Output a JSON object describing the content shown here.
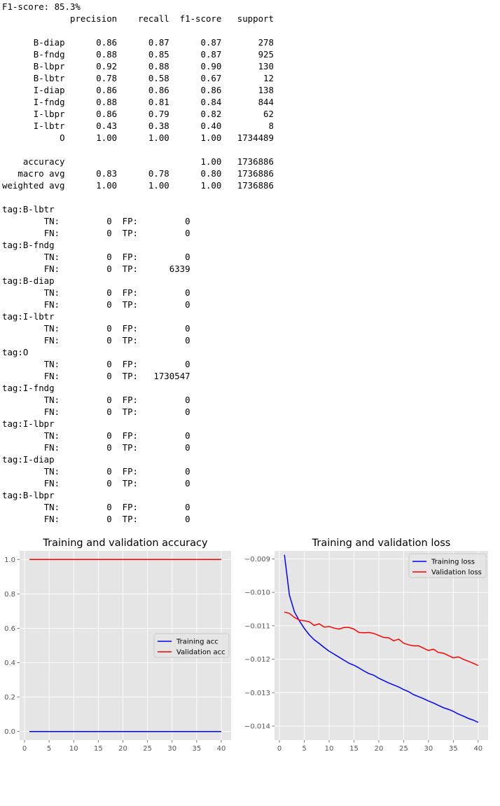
{
  "report": {
    "f1_line": "F1-score: 85.3%",
    "header": [
      "precision",
      "recall",
      "f1-score",
      "support"
    ],
    "rows": [
      {
        "label": "B-diap",
        "precision": "0.86",
        "recall": "0.87",
        "f1": "0.87",
        "support": "278"
      },
      {
        "label": "B-fndg",
        "precision": "0.88",
        "recall": "0.85",
        "f1": "0.87",
        "support": "925"
      },
      {
        "label": "B-lbpr",
        "precision": "0.92",
        "recall": "0.88",
        "f1": "0.90",
        "support": "130"
      },
      {
        "label": "B-lbtr",
        "precision": "0.78",
        "recall": "0.58",
        "f1": "0.67",
        "support": "12"
      },
      {
        "label": "I-diap",
        "precision": "0.86",
        "recall": "0.86",
        "f1": "0.86",
        "support": "138"
      },
      {
        "label": "I-fndg",
        "precision": "0.88",
        "recall": "0.81",
        "f1": "0.84",
        "support": "844"
      },
      {
        "label": "I-lbpr",
        "precision": "0.86",
        "recall": "0.79",
        "f1": "0.82",
        "support": "62"
      },
      {
        "label": "I-lbtr",
        "precision": "0.43",
        "recall": "0.38",
        "f1": "0.40",
        "support": "8"
      },
      {
        "label": "O",
        "precision": "1.00",
        "recall": "1.00",
        "f1": "1.00",
        "support": "1734489"
      }
    ],
    "summary": [
      {
        "label": "accuracy",
        "precision": "",
        "recall": "",
        "f1": "1.00",
        "support": "1736886"
      },
      {
        "label": "macro avg",
        "precision": "0.83",
        "recall": "0.78",
        "f1": "0.80",
        "support": "1736886"
      },
      {
        "label": "weighted avg",
        "precision": "1.00",
        "recall": "1.00",
        "f1": "1.00",
        "support": "1736886"
      }
    ]
  },
  "confusion": {
    "labels": {
      "tn": "TN:",
      "fp": "FP:",
      "fn": "FN:",
      "tp": "TP:"
    },
    "tags": [
      {
        "tag": "tag:B-lbtr",
        "tn": "0",
        "fp": "0",
        "fn": "0",
        "tp": "0"
      },
      {
        "tag": "tag:B-fndg",
        "tn": "0",
        "fp": "0",
        "fn": "0",
        "tp": "6339"
      },
      {
        "tag": "tag:B-diap",
        "tn": "0",
        "fp": "0",
        "fn": "0",
        "tp": "0"
      },
      {
        "tag": "tag:I-lbtr",
        "tn": "0",
        "fp": "0",
        "fn": "0",
        "tp": "0"
      },
      {
        "tag": "tag:O",
        "tn": "0",
        "fp": "0",
        "fn": "0",
        "tp": "1730547"
      },
      {
        "tag": "tag:I-fndg",
        "tn": "0",
        "fp": "0",
        "fn": "0",
        "tp": "0"
      },
      {
        "tag": "tag:I-lbpr",
        "tn": "0",
        "fp": "0",
        "fn": "0",
        "tp": "0"
      },
      {
        "tag": "tag:I-diap",
        "tn": "0",
        "fp": "0",
        "fn": "0",
        "tp": "0"
      },
      {
        "tag": "tag:B-lbpr",
        "tn": "0",
        "fp": "0",
        "fn": "0",
        "tp": "0"
      }
    ]
  },
  "chart_data": [
    {
      "type": "line",
      "title": "Training and validation accuracy",
      "xlabel": "",
      "ylabel": "",
      "xlim": [
        -1,
        42
      ],
      "ylim": [
        -0.05,
        1.05
      ],
      "xticks": [
        0,
        5,
        10,
        15,
        20,
        25,
        30,
        35,
        40
      ],
      "yticks": [
        0.0,
        0.2,
        0.4,
        0.6,
        0.8,
        1.0
      ],
      "ytick_labels": [
        "0.0",
        "0.2",
        "0.4",
        "0.6",
        "0.8",
        "1.0"
      ],
      "grid": true,
      "legend_position": "center-right",
      "x": [
        1,
        40
      ],
      "series": [
        {
          "name": "Training acc",
          "color": "#0000ff",
          "x": [
            1,
            40
          ],
          "values": [
            0.0,
            0.0
          ]
        },
        {
          "name": "Validation acc",
          "color": "#ff0000",
          "x": [
            1,
            40
          ],
          "values": [
            1.0,
            1.0
          ]
        }
      ]
    },
    {
      "type": "line",
      "title": "Training and validation loss",
      "xlabel": "",
      "ylabel": "",
      "xlim": [
        -1,
        42
      ],
      "ylim": [
        -0.01442,
        -0.00876
      ],
      "xticks": [
        0,
        5,
        10,
        15,
        20,
        25,
        30,
        35,
        40
      ],
      "yticks": [
        -0.014,
        -0.013,
        -0.012,
        -0.011,
        -0.01,
        -0.009
      ],
      "ytick_labels": [
        "−0.014",
        "−0.013",
        "−0.012",
        "−0.011",
        "−0.010",
        "−0.009"
      ],
      "grid": true,
      "legend_position": "upper-right",
      "x": [
        1,
        2,
        3,
        4,
        5,
        6,
        7,
        8,
        9,
        10,
        11,
        12,
        13,
        14,
        15,
        16,
        17,
        18,
        19,
        20,
        21,
        22,
        23,
        24,
        25,
        26,
        27,
        28,
        29,
        30,
        31,
        32,
        33,
        34,
        35,
        36,
        37,
        38,
        39,
        40
      ],
      "series": [
        {
          "name": "Training loss",
          "color": "#0000ff",
          "values": [
            -0.00888,
            -0.01008,
            -0.01058,
            -0.01085,
            -0.01108,
            -0.01127,
            -0.01142,
            -0.01153,
            -0.01165,
            -0.01176,
            -0.01185,
            -0.01194,
            -0.01203,
            -0.01212,
            -0.01218,
            -0.01226,
            -0.01235,
            -0.01243,
            -0.01248,
            -0.01257,
            -0.01264,
            -0.01271,
            -0.01277,
            -0.01283,
            -0.01291,
            -0.01297,
            -0.01306,
            -0.01312,
            -0.01318,
            -0.01325,
            -0.01331,
            -0.01338,
            -0.01345,
            -0.0135,
            -0.01356,
            -0.01364,
            -0.0137,
            -0.01377,
            -0.01382,
            -0.01389
          ]
        },
        {
          "name": "Validation loss",
          "color": "#ff0000",
          "values": [
            -0.01059,
            -0.01063,
            -0.01075,
            -0.01083,
            -0.01085,
            -0.01088,
            -0.01099,
            -0.01094,
            -0.01104,
            -0.01102,
            -0.01107,
            -0.0111,
            -0.01105,
            -0.01105,
            -0.0111,
            -0.0112,
            -0.01121,
            -0.0112,
            -0.01123,
            -0.01129,
            -0.01135,
            -0.01136,
            -0.01145,
            -0.0114,
            -0.01152,
            -0.01157,
            -0.0116,
            -0.0116,
            -0.01167,
            -0.01174,
            -0.0117,
            -0.0118,
            -0.01182,
            -0.01189,
            -0.01196,
            -0.01193,
            -0.012,
            -0.01206,
            -0.01212,
            -0.01219
          ]
        }
      ]
    }
  ]
}
